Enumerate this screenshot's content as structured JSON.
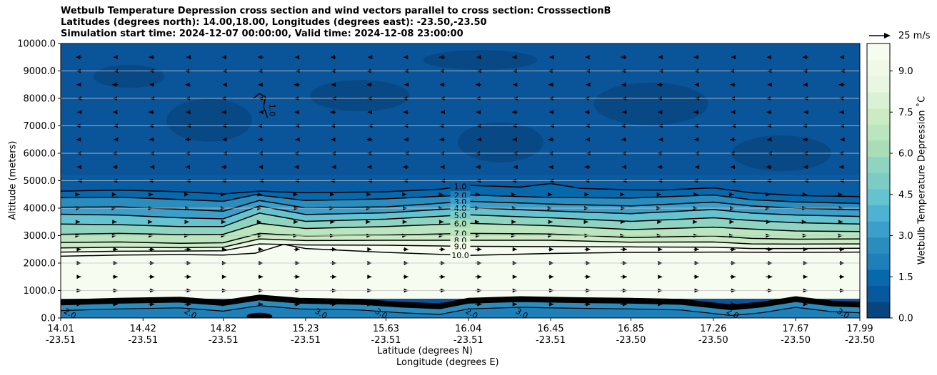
{
  "chart_data": {
    "type": "contour",
    "title_lines": [
      "Wetbulb Temperature Depression cross section and wind vectors parallel to cross section: CrosssectionB",
      "Latitudes (degrees north): 14.00,18.00, Longitudes (degrees east): -23.50,-23.50",
      "Simulation start time: 2024-12-07 00:00:00, Valid time: 2024-12-08 23:00:00"
    ],
    "xlabel_lat": "Latitude (degrees N)",
    "xlabel_lon": "Longitude (degrees E)",
    "ylabel": "Altitude (meters)",
    "x_ticks": [
      {
        "lat": "14.01",
        "lon": "-23.51",
        "v": 14.01
      },
      {
        "lat": "14.42",
        "lon": "-23.51",
        "v": 14.42
      },
      {
        "lat": "14.82",
        "lon": "-23.51",
        "v": 14.82
      },
      {
        "lat": "15.23",
        "lon": "-23.51",
        "v": 15.23
      },
      {
        "lat": "15.63",
        "lon": "-23.51",
        "v": 15.63
      },
      {
        "lat": "16.04",
        "lon": "-23.51",
        "v": 16.04
      },
      {
        "lat": "16.45",
        "lon": "-23.51",
        "v": 16.45
      },
      {
        "lat": "16.85",
        "lon": "-23.50",
        "v": 16.85
      },
      {
        "lat": "17.26",
        "lon": "-23.50",
        "v": 17.26
      },
      {
        "lat": "17.67",
        "lon": "-23.50",
        "v": 17.67
      },
      {
        "lat": "17.99",
        "lon": "-23.50",
        "v": 17.99
      }
    ],
    "xlim": [
      14.01,
      17.99
    ],
    "y_ticks": [
      0,
      1000,
      2000,
      3000,
      4000,
      5000,
      6000,
      7000,
      8000,
      9000,
      10000
    ],
    "y_tick_labels": [
      "0.0",
      "1000.0",
      "2000.0",
      "3000.0",
      "4000.0",
      "5000.0",
      "6000.0",
      "7000.0",
      "8000.0",
      "9000.0",
      "10000.0"
    ],
    "ylim": [
      0,
      10000
    ],
    "grid": "horizontal",
    "colorbar": {
      "label": "Wetbulb Temperature Depression ˚C",
      "ticks": [
        0,
        1.5,
        3,
        4.5,
        6,
        7.5,
        9
      ],
      "tick_labels": [
        "0.0",
        "1.5",
        "3.0",
        "4.5",
        "6.0",
        "7.5",
        "9.0"
      ],
      "range": [
        0,
        10
      ],
      "colormap": "GnBu_r"
    },
    "wind_key": {
      "label": "25 m/s"
    },
    "contour_labels": [
      "1.0",
      "2.0",
      "3.0",
      "4.0",
      "5.0",
      "6.0",
      "7.0",
      "8.0",
      "9.0",
      "10.0"
    ],
    "contours_upper": [
      {
        "value": 1,
        "pts": [
          [
            14.01,
            4620
          ],
          [
            14.3,
            4660
          ],
          [
            14.6,
            4600
          ],
          [
            14.82,
            4520
          ],
          [
            15.0,
            4620
          ],
          [
            15.23,
            4560
          ],
          [
            15.63,
            4600
          ],
          [
            15.9,
            4690
          ],
          [
            16.04,
            4830
          ],
          [
            16.3,
            4770
          ],
          [
            16.45,
            4900
          ],
          [
            16.6,
            4720
          ],
          [
            16.85,
            4670
          ],
          [
            17.0,
            4660
          ],
          [
            17.26,
            4740
          ],
          [
            17.45,
            4560
          ],
          [
            17.67,
            4460
          ],
          [
            17.99,
            4420
          ]
        ]
      },
      {
        "value": 2,
        "pts": [
          [
            14.01,
            4380
          ],
          [
            14.3,
            4400
          ],
          [
            14.6,
            4320
          ],
          [
            14.82,
            4250
          ],
          [
            14.98,
            4490
          ],
          [
            15.23,
            4280
          ],
          [
            15.63,
            4340
          ],
          [
            16.04,
            4480
          ],
          [
            16.45,
            4390
          ],
          [
            16.85,
            4370
          ],
          [
            17.26,
            4480
          ],
          [
            17.45,
            4310
          ],
          [
            17.67,
            4230
          ],
          [
            17.99,
            4170
          ]
        ]
      },
      {
        "value": 3,
        "pts": [
          [
            14.01,
            4030
          ],
          [
            14.3,
            4050
          ],
          [
            14.6,
            3960
          ],
          [
            14.82,
            3890
          ],
          [
            15.0,
            4280
          ],
          [
            15.23,
            4010
          ],
          [
            15.63,
            4050
          ],
          [
            16.04,
            4250
          ],
          [
            16.45,
            4150
          ],
          [
            16.85,
            4080
          ],
          [
            17.26,
            4220
          ],
          [
            17.45,
            4080
          ],
          [
            17.67,
            4000
          ],
          [
            17.99,
            3940
          ]
        ]
      },
      {
        "value": 4,
        "pts": [
          [
            14.01,
            3780
          ],
          [
            14.3,
            3750
          ],
          [
            14.6,
            3650
          ],
          [
            14.82,
            3610
          ],
          [
            15.0,
            4080
          ],
          [
            15.23,
            3770
          ],
          [
            15.63,
            3830
          ],
          [
            16.04,
            4020
          ],
          [
            16.45,
            3900
          ],
          [
            16.85,
            3800
          ],
          [
            17.26,
            3950
          ],
          [
            17.45,
            3820
          ],
          [
            17.67,
            3750
          ],
          [
            17.99,
            3700
          ]
        ]
      },
      {
        "value": 5,
        "pts": [
          [
            14.01,
            3420
          ],
          [
            14.3,
            3400
          ],
          [
            14.6,
            3330
          ],
          [
            14.82,
            3330
          ],
          [
            15.0,
            3820
          ],
          [
            15.23,
            3520
          ],
          [
            15.63,
            3600
          ],
          [
            16.04,
            3760
          ],
          [
            16.45,
            3650
          ],
          [
            16.85,
            3520
          ],
          [
            17.26,
            3650
          ],
          [
            17.45,
            3550
          ],
          [
            17.67,
            3470
          ],
          [
            17.99,
            3420
          ]
        ]
      },
      {
        "value": 6,
        "pts": [
          [
            14.01,
            3050
          ],
          [
            14.3,
            3080
          ],
          [
            14.6,
            3040
          ],
          [
            14.82,
            3050
          ],
          [
            15.0,
            3450
          ],
          [
            15.23,
            3260
          ],
          [
            15.63,
            3330
          ],
          [
            16.04,
            3450
          ],
          [
            16.45,
            3360
          ],
          [
            16.85,
            3220
          ],
          [
            17.26,
            3310
          ],
          [
            17.45,
            3240
          ],
          [
            17.67,
            3170
          ],
          [
            17.99,
            3150
          ]
        ]
      },
      {
        "value": 7,
        "pts": [
          [
            14.01,
            2750
          ],
          [
            14.3,
            2770
          ],
          [
            14.6,
            2720
          ],
          [
            14.82,
            2740
          ],
          [
            15.0,
            3080
          ],
          [
            15.23,
            2990
          ],
          [
            15.63,
            3020
          ],
          [
            16.04,
            3080
          ],
          [
            16.45,
            3060
          ],
          [
            16.85,
            2930
          ],
          [
            17.26,
            2990
          ],
          [
            17.45,
            2900
          ],
          [
            17.67,
            2870
          ],
          [
            17.99,
            2880
          ]
        ]
      },
      {
        "value": 8,
        "pts": [
          [
            14.01,
            2550
          ],
          [
            14.3,
            2580
          ],
          [
            14.6,
            2560
          ],
          [
            14.82,
            2580
          ],
          [
            15.0,
            2880
          ],
          [
            15.23,
            2820
          ],
          [
            15.63,
            2830
          ],
          [
            16.04,
            2830
          ],
          [
            16.45,
            2830
          ],
          [
            16.85,
            2760
          ],
          [
            17.26,
            2770
          ],
          [
            17.45,
            2700
          ],
          [
            17.67,
            2690
          ],
          [
            17.99,
            2700
          ]
        ]
      },
      {
        "value": 9,
        "pts": [
          [
            14.01,
            2400
          ],
          [
            14.3,
            2430
          ],
          [
            14.6,
            2440
          ],
          [
            14.82,
            2450
          ],
          [
            15.0,
            2700
          ],
          [
            15.23,
            2660
          ],
          [
            15.63,
            2650
          ],
          [
            16.04,
            2610
          ],
          [
            16.45,
            2600
          ],
          [
            16.85,
            2590
          ],
          [
            17.26,
            2580
          ],
          [
            17.45,
            2530
          ],
          [
            17.67,
            2530
          ],
          [
            17.99,
            2540
          ]
        ]
      },
      {
        "value": 10,
        "pts": [
          [
            14.01,
            2250
          ],
          [
            14.3,
            2290
          ],
          [
            14.6,
            2310
          ],
          [
            14.82,
            2290
          ],
          [
            14.98,
            2360
          ],
          [
            15.12,
            2680
          ],
          [
            15.23,
            2530
          ],
          [
            15.63,
            2390
          ],
          [
            16.04,
            2280
          ],
          [
            16.45,
            2350
          ],
          [
            16.85,
            2390
          ],
          [
            17.26,
            2400
          ],
          [
            17.67,
            2390
          ],
          [
            17.99,
            2400
          ]
        ]
      }
    ],
    "contour_small": {
      "value": 1,
      "label": "1.0",
      "pts": [
        [
          14.97,
          8000
        ],
        [
          15.0,
          8180
        ],
        [
          15.03,
          8050
        ],
        [
          15.02,
          7700
        ],
        [
          15.04,
          7300
        ]
      ]
    },
    "contours_lower_labels": [
      "2.0",
      "2.0",
      "3.0",
      "3.0",
      "2.0",
      "3.0",
      "2.0",
      "3.0"
    ]
  }
}
